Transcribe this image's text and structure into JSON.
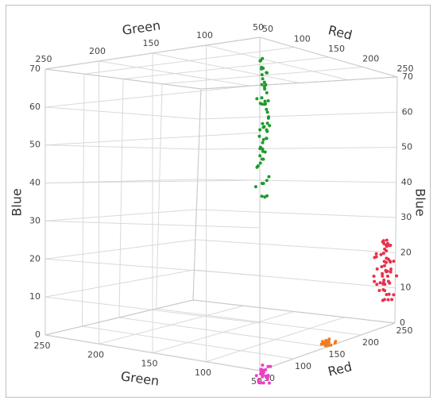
{
  "chart_data": {
    "type": "scatter",
    "title": "",
    "axes": {
      "red": {
        "label": "Red",
        "ticks": [
          50,
          100,
          150,
          200,
          250
        ],
        "range": [
          50,
          250
        ]
      },
      "green": {
        "label": "Green",
        "ticks": [
          50,
          100,
          150,
          200,
          250
        ],
        "range": [
          50,
          250
        ]
      },
      "blue": {
        "label": "Blue",
        "ticks": [
          0,
          10,
          20,
          30,
          40,
          50,
          60,
          70
        ],
        "range": [
          0,
          70
        ]
      }
    },
    "grid": true,
    "legend": "none",
    "series": [
      {
        "color": "#1f9a2a",
        "red_range": [
          50,
          60
        ],
        "green_range": [
          45,
          55
        ],
        "blue_range": [
          36,
          66
        ],
        "count": 60
      },
      {
        "color": "#e8324b",
        "red_range": [
          230,
          250
        ],
        "green_range": [
          48,
          62
        ],
        "blue_range": [
          6,
          24
        ],
        "count": 55
      },
      {
        "color": "#f07d25",
        "red_range": [
          150,
          165
        ],
        "green_range": [
          50,
          60
        ],
        "blue_range": [
          0,
          1
        ],
        "count": 20
      },
      {
        "color": "#ee3fc3",
        "red_range": [
          60,
          70
        ],
        "green_range": [
          50,
          60
        ],
        "blue_range": [
          -4,
          0
        ],
        "count": 25
      }
    ]
  }
}
